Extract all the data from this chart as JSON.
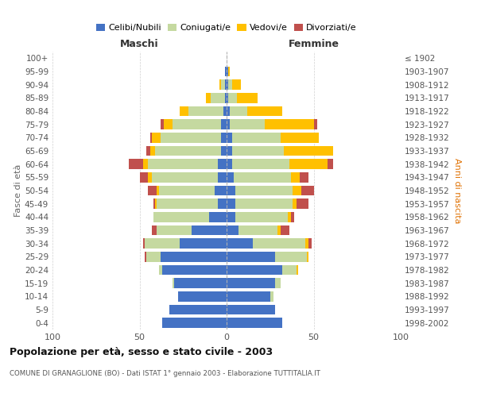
{
  "age_groups": [
    "0-4",
    "5-9",
    "10-14",
    "15-19",
    "20-24",
    "25-29",
    "30-34",
    "35-39",
    "40-44",
    "45-49",
    "50-54",
    "55-59",
    "60-64",
    "65-69",
    "70-74",
    "75-79",
    "80-84",
    "85-89",
    "90-94",
    "95-99",
    "100+"
  ],
  "birth_years": [
    "1998-2002",
    "1993-1997",
    "1988-1992",
    "1983-1987",
    "1978-1982",
    "1973-1977",
    "1968-1972",
    "1963-1967",
    "1958-1962",
    "1953-1957",
    "1948-1952",
    "1943-1947",
    "1938-1942",
    "1933-1937",
    "1928-1932",
    "1923-1927",
    "1918-1922",
    "1913-1917",
    "1908-1912",
    "1903-1907",
    "≤ 1902"
  ],
  "male": {
    "celibi": [
      37,
      33,
      28,
      30,
      37,
      38,
      27,
      20,
      10,
      5,
      7,
      5,
      5,
      3,
      3,
      3,
      2,
      1,
      1,
      1,
      0
    ],
    "coniugati": [
      0,
      0,
      0,
      1,
      2,
      8,
      20,
      20,
      32,
      35,
      32,
      38,
      40,
      38,
      35,
      28,
      20,
      8,
      2,
      0,
      0
    ],
    "vedovi": [
      0,
      0,
      0,
      0,
      0,
      0,
      0,
      0,
      0,
      1,
      1,
      2,
      3,
      3,
      5,
      5,
      5,
      3,
      1,
      0,
      0
    ],
    "divorziati": [
      0,
      0,
      0,
      0,
      0,
      1,
      1,
      3,
      0,
      1,
      5,
      5,
      8,
      2,
      1,
      2,
      0,
      0,
      0,
      0,
      0
    ]
  },
  "female": {
    "nubili": [
      32,
      28,
      25,
      28,
      32,
      28,
      15,
      7,
      5,
      5,
      5,
      4,
      3,
      3,
      3,
      2,
      2,
      1,
      1,
      1,
      0
    ],
    "coniugate": [
      0,
      0,
      2,
      3,
      8,
      18,
      30,
      22,
      30,
      33,
      33,
      33,
      33,
      30,
      28,
      20,
      10,
      5,
      2,
      0,
      0
    ],
    "vedove": [
      0,
      0,
      0,
      0,
      1,
      1,
      2,
      2,
      2,
      2,
      5,
      5,
      22,
      28,
      22,
      28,
      20,
      12,
      5,
      1,
      0
    ],
    "divorziate": [
      0,
      0,
      0,
      0,
      0,
      0,
      2,
      5,
      2,
      7,
      7,
      5,
      3,
      0,
      0,
      2,
      0,
      0,
      0,
      0,
      0
    ]
  },
  "colors": {
    "celibi": "#4472c4",
    "coniugati": "#c5d9a0",
    "vedovi": "#ffc000",
    "divorziati": "#c0504d"
  },
  "title": "Popolazione per età, sesso e stato civile - 2003",
  "subtitle": "COMUNE DI GRANAGLIONE (BO) - Dati ISTAT 1° gennaio 2003 - Elaborazione TUTTITALIA.IT",
  "label_maschi": "Maschi",
  "label_femmine": "Femmine",
  "ylabel_left": "Fasce di età",
  "ylabel_right": "Anni di nascita",
  "xlim": 100,
  "legend_labels": [
    "Celibi/Nubili",
    "Coniugati/e",
    "Vedovi/e",
    "Divorziati/e"
  ],
  "bar_height": 0.75
}
